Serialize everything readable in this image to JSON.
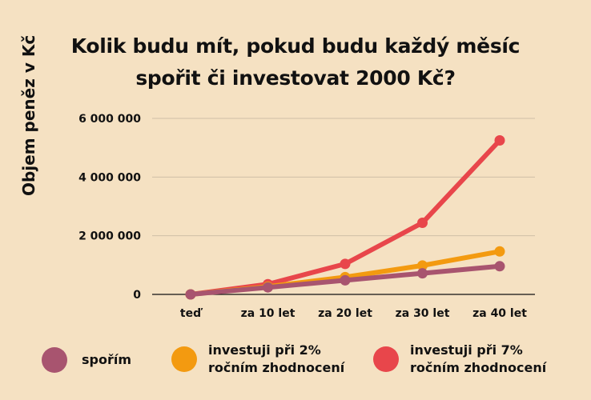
{
  "chart_data": {
    "type": "line",
    "title_lines": [
      "Kolik budu mít, pokud budu každý měsíc",
      "spořit či investovat 2000 Kč?"
    ],
    "xlabel": "",
    "ylabel": "Objem peněz v Kč",
    "categories": [
      "teď",
      "za 10 let",
      "za 20 let",
      "za 30 let",
      "za 40 let"
    ],
    "ylim": [
      0,
      6000000
    ],
    "yticks": [
      0,
      2000000,
      4000000,
      6000000
    ],
    "ytick_labels": [
      "0",
      "2 000 000",
      "4 000 000",
      "6 000 000"
    ],
    "grid": true,
    "legend_position": "bottom",
    "series": [
      {
        "name": "spořím",
        "color": "#a8546f",
        "values": [
          0,
          240000,
          480000,
          720000,
          960000
        ]
      },
      {
        "name": "investuji při 2% ročním zhodnocení",
        "label_lines": [
          "investuji při 2%",
          "ročním zhodnocení"
        ],
        "color": "#f39a10",
        "values": [
          0,
          265000,
          590000,
          985000,
          1465000
        ]
      },
      {
        "name": "investuji při 7% ročním zhodnocení",
        "label_lines": [
          "investuji při 7%",
          "ročním zhodnocení"
        ],
        "color": "#e8464b",
        "values": [
          0,
          347000,
          1040000,
          2440000,
          5250000
        ]
      }
    ]
  }
}
